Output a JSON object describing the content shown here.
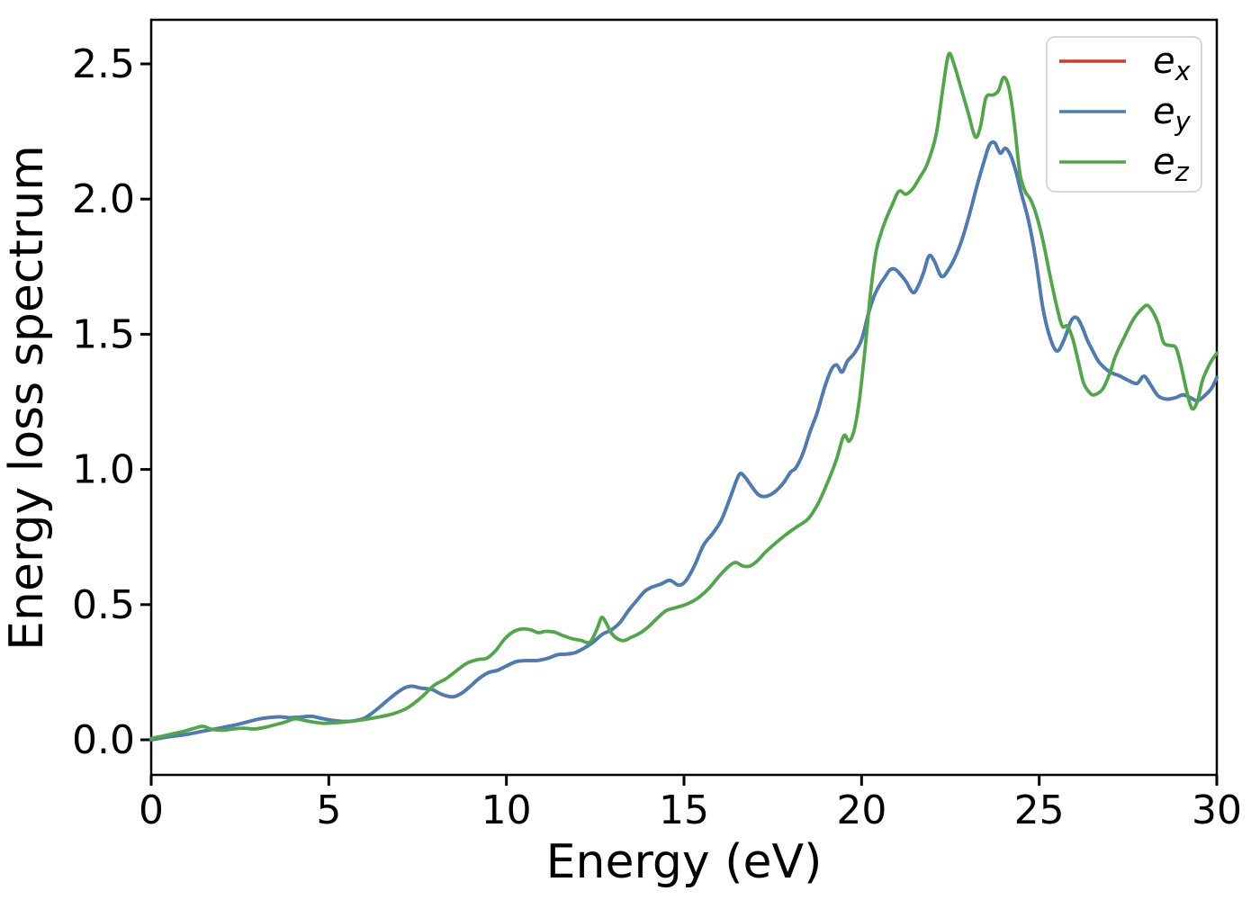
{
  "figure": {
    "background": "#ffffff",
    "spine_color": "#000000"
  },
  "legend": {
    "position": "upper right",
    "items": [
      {
        "label": "e_x",
        "base": "e",
        "sub": "x",
        "color": "#d9342e"
      },
      {
        "label": "e_y",
        "base": "e",
        "sub": "y",
        "color": "#4a7db6"
      },
      {
        "label": "e_z",
        "base": "e",
        "sub": "z",
        "color": "#4fa74a"
      }
    ]
  },
  "chart_data": {
    "type": "line",
    "title": "",
    "xlabel": "Energy (eV)",
    "ylabel": "Energy loss spectrum",
    "xlim": [
      0,
      30
    ],
    "ylim": [
      -0.13,
      2.66
    ],
    "x_ticks": [
      0,
      5,
      10,
      15,
      20,
      25,
      30
    ],
    "y_ticks": [
      0.0,
      0.5,
      1.0,
      1.5,
      2.0,
      2.5
    ],
    "grid": false,
    "legend_position": "upper right",
    "series": [
      {
        "name": "e_x",
        "color": "#d9342e",
        "points_same_as": "e_y",
        "points": []
      },
      {
        "name": "e_y",
        "color": "#4a7db6",
        "points": [
          [
            0,
            0.0
          ],
          [
            0.3,
            0.007
          ],
          [
            0.6,
            0.013
          ],
          [
            0.9,
            0.018
          ],
          [
            1.2,
            0.025
          ],
          [
            1.5,
            0.033
          ],
          [
            1.8,
            0.04
          ],
          [
            2.1,
            0.048
          ],
          [
            2.4,
            0.056
          ],
          [
            2.7,
            0.066
          ],
          [
            3.0,
            0.076
          ],
          [
            3.3,
            0.082
          ],
          [
            3.6,
            0.085
          ],
          [
            3.9,
            0.082
          ],
          [
            4.2,
            0.084
          ],
          [
            4.5,
            0.087
          ],
          [
            4.8,
            0.079
          ],
          [
            5.1,
            0.072
          ],
          [
            5.4,
            0.068
          ],
          [
            5.7,
            0.07
          ],
          [
            6.0,
            0.08
          ],
          [
            6.3,
            0.107
          ],
          [
            6.6,
            0.14
          ],
          [
            6.9,
            0.172
          ],
          [
            7.15,
            0.193
          ],
          [
            7.35,
            0.198
          ],
          [
            7.6,
            0.191
          ],
          [
            7.9,
            0.186
          ],
          [
            8.2,
            0.167
          ],
          [
            8.5,
            0.159
          ],
          [
            8.75,
            0.173
          ],
          [
            9.0,
            0.2
          ],
          [
            9.25,
            0.229
          ],
          [
            9.5,
            0.249
          ],
          [
            9.75,
            0.257
          ],
          [
            10.0,
            0.273
          ],
          [
            10.3,
            0.29
          ],
          [
            10.6,
            0.293
          ],
          [
            10.9,
            0.294
          ],
          [
            11.2,
            0.303
          ],
          [
            11.45,
            0.315
          ],
          [
            11.7,
            0.317
          ],
          [
            11.95,
            0.323
          ],
          [
            12.2,
            0.34
          ],
          [
            12.45,
            0.362
          ],
          [
            12.7,
            0.39
          ],
          [
            12.95,
            0.406
          ],
          [
            13.2,
            0.434
          ],
          [
            13.45,
            0.48
          ],
          [
            13.7,
            0.52
          ],
          [
            13.9,
            0.55
          ],
          [
            14.1,
            0.565
          ],
          [
            14.35,
            0.576
          ],
          [
            14.6,
            0.59
          ],
          [
            14.85,
            0.572
          ],
          [
            15.05,
            0.588
          ],
          [
            15.3,
            0.645
          ],
          [
            15.55,
            0.72
          ],
          [
            15.8,
            0.762
          ],
          [
            16.05,
            0.812
          ],
          [
            16.3,
            0.895
          ],
          [
            16.55,
            0.98
          ],
          [
            16.7,
            0.974
          ],
          [
            16.9,
            0.938
          ],
          [
            17.1,
            0.906
          ],
          [
            17.3,
            0.9
          ],
          [
            17.55,
            0.916
          ],
          [
            17.8,
            0.95
          ],
          [
            18.0,
            0.99
          ],
          [
            18.15,
            1.006
          ],
          [
            18.35,
            1.06
          ],
          [
            18.55,
            1.14
          ],
          [
            18.75,
            1.21
          ],
          [
            18.95,
            1.3
          ],
          [
            19.15,
            1.37
          ],
          [
            19.3,
            1.386
          ],
          [
            19.45,
            1.36
          ],
          [
            19.6,
            1.4
          ],
          [
            19.8,
            1.43
          ],
          [
            20.0,
            1.48
          ],
          [
            20.2,
            1.58
          ],
          [
            20.35,
            1.64
          ],
          [
            20.5,
            1.68
          ],
          [
            20.65,
            1.71
          ],
          [
            20.8,
            1.738
          ],
          [
            20.95,
            1.74
          ],
          [
            21.1,
            1.72
          ],
          [
            21.25,
            1.695
          ],
          [
            21.45,
            1.654
          ],
          [
            21.6,
            1.68
          ],
          [
            21.75,
            1.73
          ],
          [
            21.9,
            1.79
          ],
          [
            22.05,
            1.77
          ],
          [
            22.25,
            1.714
          ],
          [
            22.45,
            1.74
          ],
          [
            22.65,
            1.79
          ],
          [
            22.85,
            1.86
          ],
          [
            23.05,
            1.95
          ],
          [
            23.25,
            2.05
          ],
          [
            23.45,
            2.14
          ],
          [
            23.6,
            2.2
          ],
          [
            23.75,
            2.208
          ],
          [
            23.9,
            2.17
          ],
          [
            24.05,
            2.188
          ],
          [
            24.2,
            2.16
          ],
          [
            24.35,
            2.1
          ],
          [
            24.5,
            2.02
          ],
          [
            24.7,
            1.92
          ],
          [
            24.9,
            1.78
          ],
          [
            25.1,
            1.6
          ],
          [
            25.3,
            1.49
          ],
          [
            25.5,
            1.438
          ],
          [
            25.7,
            1.48
          ],
          [
            25.9,
            1.55
          ],
          [
            26.05,
            1.562
          ],
          [
            26.2,
            1.53
          ],
          [
            26.35,
            1.48
          ],
          [
            26.5,
            1.44
          ],
          [
            26.7,
            1.394
          ],
          [
            27.0,
            1.36
          ],
          [
            27.25,
            1.347
          ],
          [
            27.5,
            1.33
          ],
          [
            27.75,
            1.318
          ],
          [
            27.95,
            1.345
          ],
          [
            28.15,
            1.31
          ],
          [
            28.35,
            1.272
          ],
          [
            28.6,
            1.26
          ],
          [
            28.85,
            1.266
          ],
          [
            29.05,
            1.276
          ],
          [
            29.25,
            1.266
          ],
          [
            29.45,
            1.254
          ],
          [
            29.65,
            1.272
          ],
          [
            29.85,
            1.3
          ],
          [
            30.0,
            1.34
          ]
        ]
      },
      {
        "name": "e_z",
        "color": "#4fa74a",
        "points": [
          [
            0,
            0.005
          ],
          [
            0.3,
            0.013
          ],
          [
            0.6,
            0.022
          ],
          [
            0.9,
            0.031
          ],
          [
            1.2,
            0.042
          ],
          [
            1.45,
            0.05
          ],
          [
            1.7,
            0.039
          ],
          [
            2.0,
            0.035
          ],
          [
            2.3,
            0.04
          ],
          [
            2.6,
            0.043
          ],
          [
            2.9,
            0.04
          ],
          [
            3.2,
            0.046
          ],
          [
            3.5,
            0.056
          ],
          [
            3.8,
            0.067
          ],
          [
            4.05,
            0.078
          ],
          [
            4.3,
            0.072
          ],
          [
            4.55,
            0.066
          ],
          [
            4.85,
            0.061
          ],
          [
            5.2,
            0.063
          ],
          [
            5.6,
            0.068
          ],
          [
            6.0,
            0.075
          ],
          [
            6.4,
            0.084
          ],
          [
            6.8,
            0.096
          ],
          [
            7.2,
            0.117
          ],
          [
            7.6,
            0.156
          ],
          [
            7.95,
            0.2
          ],
          [
            8.3,
            0.226
          ],
          [
            8.6,
            0.256
          ],
          [
            8.9,
            0.284
          ],
          [
            9.2,
            0.297
          ],
          [
            9.45,
            0.302
          ],
          [
            9.7,
            0.33
          ],
          [
            9.95,
            0.373
          ],
          [
            10.2,
            0.4
          ],
          [
            10.45,
            0.41
          ],
          [
            10.7,
            0.406
          ],
          [
            10.9,
            0.396
          ],
          [
            11.1,
            0.401
          ],
          [
            11.35,
            0.398
          ],
          [
            11.6,
            0.385
          ],
          [
            11.85,
            0.374
          ],
          [
            12.1,
            0.368
          ],
          [
            12.35,
            0.361
          ],
          [
            12.55,
            0.41
          ],
          [
            12.68,
            0.452
          ],
          [
            12.8,
            0.434
          ],
          [
            12.95,
            0.396
          ],
          [
            13.1,
            0.376
          ],
          [
            13.3,
            0.367
          ],
          [
            13.5,
            0.378
          ],
          [
            13.75,
            0.394
          ],
          [
            14.0,
            0.418
          ],
          [
            14.25,
            0.45
          ],
          [
            14.5,
            0.478
          ],
          [
            14.8,
            0.49
          ],
          [
            15.1,
            0.503
          ],
          [
            15.4,
            0.525
          ],
          [
            15.7,
            0.56
          ],
          [
            16.0,
            0.607
          ],
          [
            16.25,
            0.64
          ],
          [
            16.45,
            0.656
          ],
          [
            16.65,
            0.643
          ],
          [
            16.85,
            0.642
          ],
          [
            17.05,
            0.66
          ],
          [
            17.3,
            0.695
          ],
          [
            17.6,
            0.73
          ],
          [
            17.9,
            0.762
          ],
          [
            18.2,
            0.79
          ],
          [
            18.5,
            0.818
          ],
          [
            18.8,
            0.88
          ],
          [
            19.1,
            0.97
          ],
          [
            19.3,
            1.04
          ],
          [
            19.5,
            1.125
          ],
          [
            19.65,
            1.105
          ],
          [
            19.8,
            1.15
          ],
          [
            19.95,
            1.27
          ],
          [
            20.1,
            1.45
          ],
          [
            20.25,
            1.65
          ],
          [
            20.4,
            1.8
          ],
          [
            20.55,
            1.875
          ],
          [
            20.7,
            1.93
          ],
          [
            20.85,
            1.975
          ],
          [
            21.0,
            2.02
          ],
          [
            21.1,
            2.03
          ],
          [
            21.25,
            2.018
          ],
          [
            21.45,
            2.04
          ],
          [
            21.65,
            2.083
          ],
          [
            21.85,
            2.13
          ],
          [
            22.1,
            2.24
          ],
          [
            22.3,
            2.42
          ],
          [
            22.45,
            2.535
          ],
          [
            22.6,
            2.5
          ],
          [
            22.8,
            2.41
          ],
          [
            23.0,
            2.32
          ],
          [
            23.2,
            2.23
          ],
          [
            23.35,
            2.27
          ],
          [
            23.5,
            2.375
          ],
          [
            23.7,
            2.385
          ],
          [
            23.85,
            2.4
          ],
          [
            24.0,
            2.45
          ],
          [
            24.15,
            2.41
          ],
          [
            24.3,
            2.28
          ],
          [
            24.45,
            2.1
          ],
          [
            24.6,
            2.03
          ],
          [
            24.75,
            2.0
          ],
          [
            24.9,
            1.95
          ],
          [
            25.1,
            1.85
          ],
          [
            25.3,
            1.72
          ],
          [
            25.5,
            1.6
          ],
          [
            25.65,
            1.53
          ],
          [
            25.8,
            1.53
          ],
          [
            25.95,
            1.48
          ],
          [
            26.1,
            1.4
          ],
          [
            26.25,
            1.32
          ],
          [
            26.45,
            1.28
          ],
          [
            26.6,
            1.278
          ],
          [
            26.8,
            1.3
          ],
          [
            27.0,
            1.36
          ],
          [
            27.15,
            1.42
          ],
          [
            27.4,
            1.49
          ],
          [
            27.65,
            1.555
          ],
          [
            27.9,
            1.595
          ],
          [
            28.05,
            1.607
          ],
          [
            28.2,
            1.583
          ],
          [
            28.35,
            1.54
          ],
          [
            28.5,
            1.47
          ],
          [
            28.7,
            1.458
          ],
          [
            28.85,
            1.45
          ],
          [
            29.0,
            1.38
          ],
          [
            29.15,
            1.29
          ],
          [
            29.3,
            1.225
          ],
          [
            29.45,
            1.25
          ],
          [
            29.6,
            1.33
          ],
          [
            29.8,
            1.39
          ],
          [
            30.0,
            1.43
          ]
        ]
      }
    ]
  }
}
